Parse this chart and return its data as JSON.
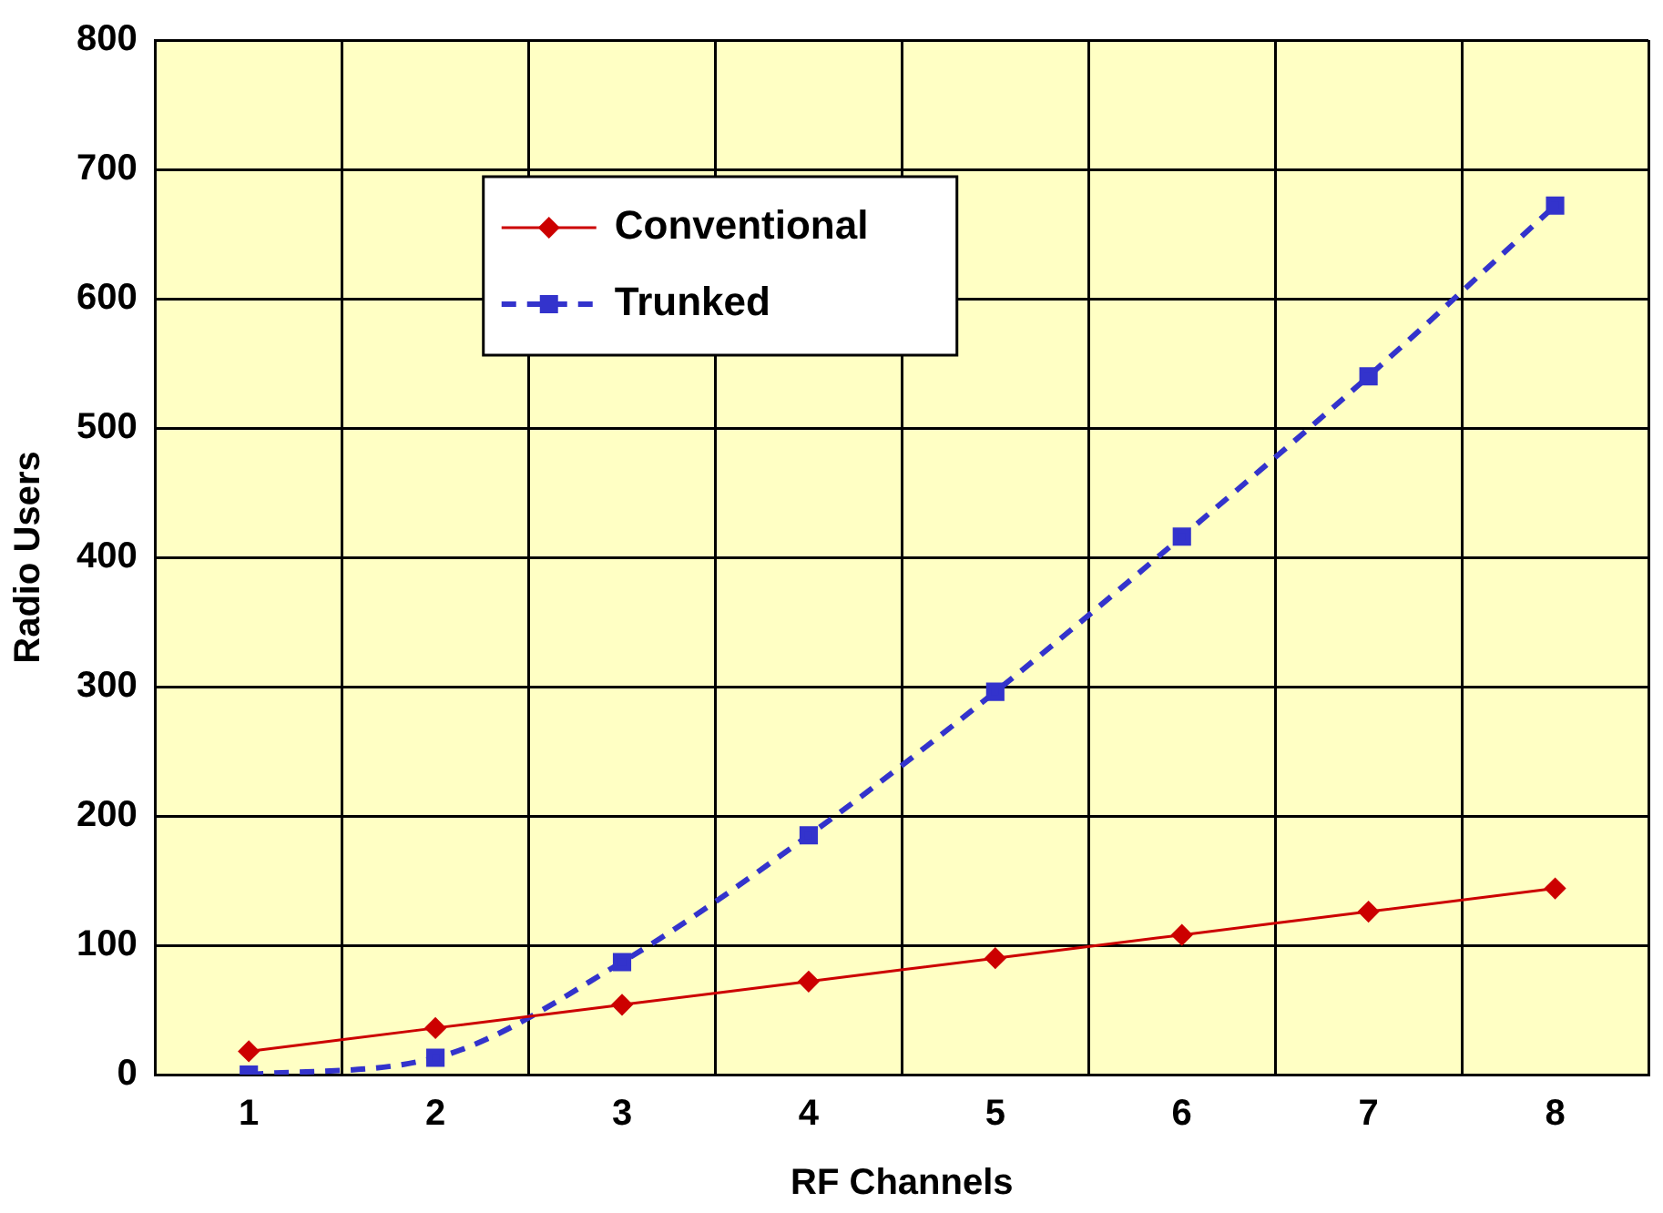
{
  "chart_data": {
    "type": "line",
    "xlabel": "RF Channels",
    "ylabel": "Radio Users",
    "categories": [
      "1",
      "2",
      "3",
      "4",
      "5",
      "6",
      "7",
      "8"
    ],
    "series": [
      {
        "name": "Conventional",
        "color": "#cc0000",
        "values": [
          18,
          36,
          54,
          72,
          90,
          108,
          126,
          144
        ],
        "marker": "diamond",
        "line_style": "solid"
      },
      {
        "name": "Trunked",
        "color": "#3333cc",
        "values": [
          0,
          13,
          87,
          185,
          296,
          416,
          540,
          672
        ],
        "marker": "square",
        "line_style": "dashed"
      }
    ],
    "ylim": [
      0,
      800
    ],
    "yticks": [
      0,
      100,
      200,
      300,
      400,
      500,
      600,
      700,
      800
    ],
    "grid": true,
    "legend": "top left"
  }
}
